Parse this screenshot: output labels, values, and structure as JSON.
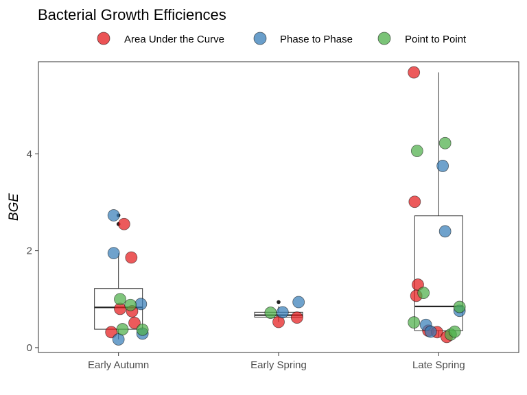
{
  "chart_data": {
    "type": "box",
    "title": "Bacterial Growth Efficiences",
    "xlabel": "",
    "ylabel": "BGE",
    "ylim": [
      -0.1,
      5.9
    ],
    "yticks": [
      0,
      2,
      4
    ],
    "categories": [
      "Early Autumn",
      "Early Spring",
      "Late Spring"
    ],
    "legend": {
      "position": "top",
      "entries": [
        {
          "name": "Area Under the Curve",
          "color": "#e41a1c"
        },
        {
          "name": "Phase to Phase",
          "color": "#377eb8"
        },
        {
          "name": "Point to Point",
          "color": "#4daf4a"
        }
      ]
    },
    "grid": false,
    "boxes": [
      {
        "category": "Early Autumn",
        "q1": 0.38,
        "median": 0.83,
        "q3": 1.22,
        "whisker_low": 0.17,
        "whisker_high": 1.95,
        "outliers": [
          2.55,
          2.73
        ]
      },
      {
        "category": "Early Spring",
        "q1": 0.63,
        "median": 0.67,
        "q3": 0.73,
        "whisker_low": 0.53,
        "whisker_high": 0.85,
        "outliers": [
          0.94
        ]
      },
      {
        "category": "Late Spring",
        "q1": 0.35,
        "median": 0.85,
        "q3": 2.72,
        "whisker_low": 0.22,
        "whisker_high": 5.68,
        "outliers": []
      }
    ],
    "series": [
      {
        "name": "Area Under the Curve",
        "points": [
          {
            "category": "Early Autumn",
            "x_offset": 0.07,
            "y": 2.55
          },
          {
            "category": "Early Autumn",
            "x_offset": 0.16,
            "y": 1.86
          },
          {
            "category": "Early Autumn",
            "x_offset": 0.02,
            "y": 0.8
          },
          {
            "category": "Early Autumn",
            "x_offset": 0.17,
            "y": 0.75
          },
          {
            "category": "Early Autumn",
            "x_offset": 0.2,
            "y": 0.51
          },
          {
            "category": "Early Autumn",
            "x_offset": -0.09,
            "y": 0.32
          },
          {
            "category": "Early Spring",
            "x_offset": 0.0,
            "y": 0.53
          },
          {
            "category": "Early Spring",
            "x_offset": 0.23,
            "y": 0.62
          },
          {
            "category": "Late Spring",
            "x_offset": -0.31,
            "y": 5.68
          },
          {
            "category": "Late Spring",
            "x_offset": -0.3,
            "y": 3.01
          },
          {
            "category": "Late Spring",
            "x_offset": -0.26,
            "y": 1.3
          },
          {
            "category": "Late Spring",
            "x_offset": -0.28,
            "y": 1.07
          },
          {
            "category": "Late Spring",
            "x_offset": -0.13,
            "y": 0.35
          },
          {
            "category": "Late Spring",
            "x_offset": -0.02,
            "y": 0.32
          },
          {
            "category": "Late Spring",
            "x_offset": 0.1,
            "y": 0.22
          }
        ]
      },
      {
        "name": "Phase to Phase",
        "points": [
          {
            "category": "Early Autumn",
            "x_offset": -0.06,
            "y": 2.73
          },
          {
            "category": "Early Autumn",
            "x_offset": -0.06,
            "y": 1.95
          },
          {
            "category": "Early Autumn",
            "x_offset": 0.28,
            "y": 0.9
          },
          {
            "category": "Early Autumn",
            "x_offset": 0.3,
            "y": 0.29
          },
          {
            "category": "Early Autumn",
            "x_offset": 0.0,
            "y": 0.17
          },
          {
            "category": "Early Spring",
            "x_offset": 0.05,
            "y": 0.73
          },
          {
            "category": "Early Spring",
            "x_offset": 0.25,
            "y": 0.94
          },
          {
            "category": "Late Spring",
            "x_offset": 0.05,
            "y": 3.75
          },
          {
            "category": "Late Spring",
            "x_offset": 0.08,
            "y": 2.4
          },
          {
            "category": "Late Spring",
            "x_offset": 0.26,
            "y": 0.76
          },
          {
            "category": "Late Spring",
            "x_offset": -0.16,
            "y": 0.47
          },
          {
            "category": "Late Spring",
            "x_offset": -0.1,
            "y": 0.33
          }
        ]
      },
      {
        "name": "Point to Point",
        "points": [
          {
            "category": "Early Autumn",
            "x_offset": 0.02,
            "y": 1.0
          },
          {
            "category": "Early Autumn",
            "x_offset": 0.15,
            "y": 0.88
          },
          {
            "category": "Early Autumn",
            "x_offset": 0.05,
            "y": 0.38
          },
          {
            "category": "Early Autumn",
            "x_offset": 0.3,
            "y": 0.37
          },
          {
            "category": "Early Spring",
            "x_offset": -0.1,
            "y": 0.72
          },
          {
            "category": "Late Spring",
            "x_offset": -0.27,
            "y": 4.06
          },
          {
            "category": "Late Spring",
            "x_offset": 0.08,
            "y": 4.22
          },
          {
            "category": "Late Spring",
            "x_offset": -0.19,
            "y": 1.13
          },
          {
            "category": "Late Spring",
            "x_offset": 0.26,
            "y": 0.84
          },
          {
            "category": "Late Spring",
            "x_offset": -0.31,
            "y": 0.52
          },
          {
            "category": "Late Spring",
            "x_offset": 0.15,
            "y": 0.27
          },
          {
            "category": "Late Spring",
            "x_offset": 0.2,
            "y": 0.33
          }
        ]
      }
    ]
  }
}
